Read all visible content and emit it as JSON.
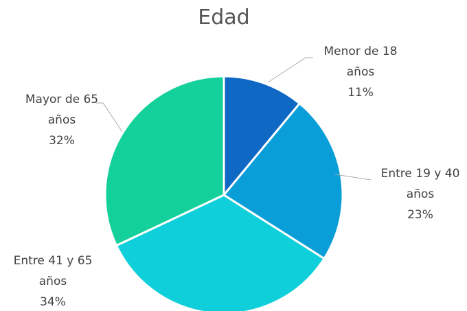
{
  "chart_data": {
    "type": "pie",
    "title": "Edad",
    "categories": [
      "Menor de 18 años",
      "Entre 19 y 40 años",
      "Entre 41 y 65 años",
      "Mayor de 65 años"
    ],
    "values": [
      11,
      23,
      34,
      32
    ],
    "value_labels": [
      "11%",
      "23%",
      "34%",
      "32%"
    ],
    "colors": [
      "#0f69c4",
      "#0a9ed8",
      "#0fcfda",
      "#14d09b"
    ]
  }
}
